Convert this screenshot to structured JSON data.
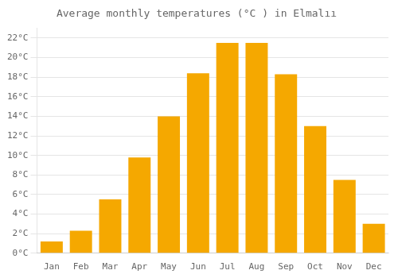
{
  "chart_data": {
    "type": "bar",
    "title": "Average monthly temperatures (°C ) in Elmalıı",
    "categories": [
      "Jan",
      "Feb",
      "Mar",
      "Apr",
      "May",
      "Jun",
      "Jul",
      "Aug",
      "Sep",
      "Oct",
      "Nov",
      "Dec"
    ],
    "values": [
      1.2,
      2.3,
      5.5,
      9.8,
      14.0,
      18.4,
      21.5,
      21.5,
      18.3,
      13.0,
      7.5,
      3.0
    ],
    "color": "#F5A800",
    "ylim": [
      0,
      23
    ],
    "yticks": [
      {
        "value": 0,
        "label": "0°C"
      },
      {
        "value": 2,
        "label": "2°C"
      },
      {
        "value": 4,
        "label": "4°C"
      },
      {
        "value": 6,
        "label": "6°C"
      },
      {
        "value": 8,
        "label": "8°C"
      },
      {
        "value": 10,
        "label": "10°C"
      },
      {
        "value": 12,
        "label": "12°C"
      },
      {
        "value": 14,
        "label": "14°C"
      },
      {
        "value": 16,
        "label": "16°C"
      },
      {
        "value": 18,
        "label": "18°C"
      },
      {
        "value": 20,
        "label": "20°C"
      },
      {
        "value": 22,
        "label": "22°C"
      }
    ],
    "grid": true
  }
}
